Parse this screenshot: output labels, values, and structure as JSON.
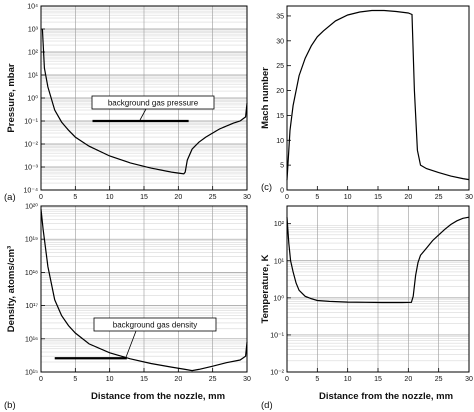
{
  "xlabel": "Distance from the nozzle, mm",
  "chart_data": [
    {
      "type": "line",
      "panel_label": "(a)",
      "xlabel": "",
      "ylabel": "Pressure, mbar",
      "xlim": [
        0,
        30
      ],
      "ylim": [
        0.0001,
        10000
      ],
      "yscale": "log",
      "grid": true,
      "x_ticks": [
        "0",
        "5",
        "10",
        "15",
        "20",
        "25",
        "30"
      ],
      "y_ticks": [
        "10⁻⁴",
        "10⁻³",
        "10⁻²",
        "10⁻¹",
        "10⁰",
        "10¹",
        "10²",
        "10³",
        "10⁴"
      ],
      "annotation": {
        "text": "background gas pressure",
        "value": 0.1,
        "x_start": 7.5,
        "x_end": 21.5
      },
      "series": [
        {
          "x": [
            0.2,
            0.5,
            1,
            2,
            3,
            4,
            5,
            7,
            10,
            13,
            16,
            19,
            20.8,
            21.0,
            21.3,
            22,
            23,
            24,
            25,
            26,
            27,
            28,
            29,
            29.8,
            30
          ],
          "y": [
            1000,
            20,
            3,
            0.3,
            0.09,
            0.04,
            0.02,
            0.008,
            0.003,
            0.0015,
            0.0009,
            0.0006,
            0.0005,
            0.0006,
            0.002,
            0.006,
            0.012,
            0.02,
            0.03,
            0.045,
            0.06,
            0.08,
            0.1,
            0.15,
            0.6
          ]
        }
      ]
    },
    {
      "type": "line",
      "panel_label": "(b)",
      "xlabel": "Distance from the nozzle, mm",
      "ylabel": "Density, atoms/cm³",
      "xlim": [
        0,
        30
      ],
      "ylim": [
        1000000000000000.0,
        1e+20
      ],
      "yscale": "log",
      "grid": true,
      "x_ticks": [
        "0",
        "5",
        "10",
        "15",
        "20",
        "25",
        "30"
      ],
      "y_ticks": [
        "10¹⁵",
        "10¹⁶",
        "10¹⁷",
        "10¹⁸",
        "10¹⁹",
        "10²⁰"
      ],
      "annotation": {
        "text": "background gas density",
        "value": 2600000000000000.0,
        "x_start": 2,
        "x_end": 12.5
      },
      "series": [
        {
          "x": [
            0,
            0.3,
            1,
            2,
            3,
            4,
            5,
            7,
            10,
            13,
            16,
            19,
            21,
            22,
            23,
            25,
            27,
            29,
            29.8,
            30
          ],
          "y": [
            8e+19,
            2e+19,
            1.5e+18,
            1.5e+17,
            5e+16,
            2.5e+16,
            1.5e+16,
            7000000000000000.0,
            3800000000000000.0,
            2500000000000000.0,
            1800000000000000.0,
            1400000000000000.0,
            1200000000000000.0,
            1100000000000000.0,
            1200000000000000.0,
            1500000000000000.0,
            1900000000000000.0,
            2300000000000000.0,
            3000000000000000.0,
            8000000000000000.0
          ]
        }
      ]
    },
    {
      "type": "line",
      "panel_label": "(c)",
      "xlabel": "",
      "ylabel": "Mach number",
      "xlim": [
        0,
        30
      ],
      "ylim": [
        0,
        37
      ],
      "yscale": "linear",
      "grid": false,
      "x_ticks": [
        "0",
        "5",
        "10",
        "15",
        "20",
        "25",
        "30"
      ],
      "y_ticks": [
        "0",
        "5",
        "10",
        "15",
        "20",
        "25",
        "30",
        "35"
      ],
      "series": [
        {
          "x": [
            0,
            0.5,
            1,
            2,
            3,
            4,
            5,
            6,
            8,
            10,
            12,
            14,
            16,
            18,
            20,
            20.6,
            21,
            21.5,
            22,
            23,
            25,
            27,
            29,
            30
          ],
          "y": [
            2,
            12,
            17,
            23,
            26.5,
            29,
            30.8,
            32,
            34,
            35.2,
            35.8,
            36.1,
            36.1,
            35.9,
            35.6,
            35.3,
            20,
            8,
            5,
            4.3,
            3.5,
            2.8,
            2.3,
            2.1
          ]
        }
      ]
    },
    {
      "type": "line",
      "panel_label": "(d)",
      "xlabel": "Distance from the nozzle, mm",
      "ylabel": "Temperature, K",
      "xlim": [
        0,
        30
      ],
      "ylim": [
        0.01,
        300
      ],
      "yscale": "log",
      "grid": true,
      "x_ticks": [
        "0",
        "5",
        "10",
        "15",
        "20",
        "25",
        "30"
      ],
      "y_ticks": [
        "10⁻²",
        "10⁻¹",
        "10⁰",
        "10¹",
        "10²"
      ],
      "series": [
        {
          "x": [
            0,
            0.3,
            0.6,
            1,
            1.5,
            2,
            3,
            4,
            5,
            7,
            10,
            13,
            16,
            19,
            20.5,
            20.8,
            21.2,
            21.6,
            22,
            23,
            24,
            25,
            26,
            27,
            28,
            29,
            30
          ],
          "y": [
            150,
            30,
            10,
            5,
            2.5,
            1.6,
            1.1,
            0.95,
            0.85,
            0.8,
            0.77,
            0.76,
            0.75,
            0.75,
            0.76,
            1.1,
            4,
            9,
            14,
            22,
            35,
            50,
            70,
            95,
            120,
            140,
            150
          ]
        }
      ]
    }
  ]
}
